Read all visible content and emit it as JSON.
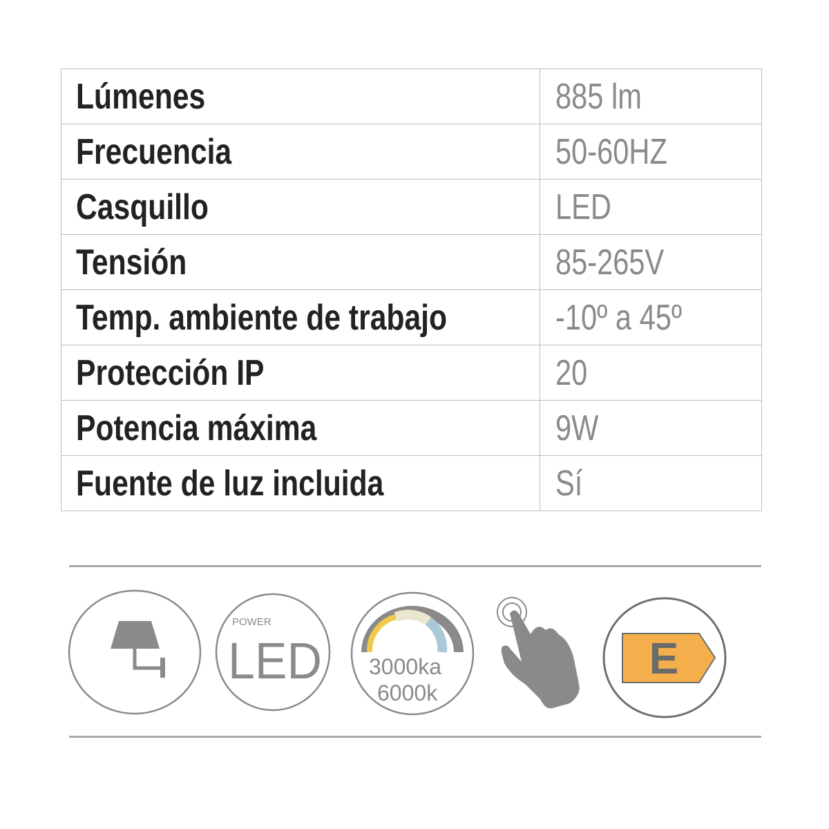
{
  "specs": [
    {
      "label": "Lúmenes",
      "value": "885 lm"
    },
    {
      "label": "Frecuencia",
      "value": "50-60HZ"
    },
    {
      "label": "Casquillo",
      "value": "LED"
    },
    {
      "label": "Tensión",
      "value": "85-265V"
    },
    {
      "label": "Temp. ambiente de trabajo",
      "value": "-10º a 45º"
    },
    {
      "label": "Protección IP",
      "value": "20"
    },
    {
      "label": "Potencia máxima",
      "value": "9W"
    },
    {
      "label": "Fuente de luz incluida",
      "value": "Sí"
    }
  ],
  "icons": {
    "wall_lamp": "wall-lamp-icon",
    "power_led": {
      "small": "POWER",
      "big": "LED"
    },
    "color_temp": {
      "line1": "3000ka",
      "line2": "6000k"
    },
    "touch": "touch-hand-icon",
    "energy": {
      "class": "E"
    }
  },
  "colors": {
    "energy_orange": "#f4af4c",
    "icon_gray": "#8a8a8a",
    "warm": "#f0c84a",
    "neutral": "#ebe6cf",
    "cool": "#a9c9d6"
  }
}
